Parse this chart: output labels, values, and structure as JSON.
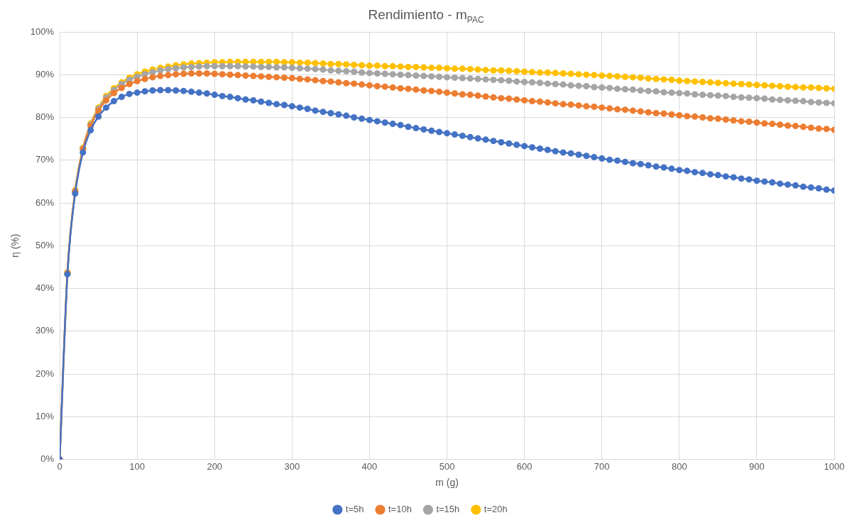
{
  "chart_data": {
    "type": "line",
    "title": "Rendimiento - m$_{PAC}$",
    "xlabel": "m (g)",
    "ylabel": "η (%)",
    "x": [
      0,
      10,
      20,
      30,
      40,
      50,
      60,
      70,
      80,
      90,
      100,
      110,
      120,
      130,
      140,
      150,
      160,
      170,
      180,
      190,
      200,
      210,
      220,
      230,
      240,
      250,
      260,
      270,
      280,
      290,
      300,
      310,
      320,
      330,
      340,
      350,
      360,
      370,
      380,
      390,
      400,
      410,
      420,
      430,
      440,
      450,
      460,
      470,
      480,
      490,
      500,
      510,
      520,
      530,
      540,
      550,
      560,
      570,
      580,
      590,
      600,
      610,
      620,
      630,
      640,
      650,
      660,
      670,
      680,
      690,
      700,
      710,
      720,
      730,
      740,
      750,
      760,
      770,
      780,
      790,
      800,
      810,
      820,
      830,
      840,
      850,
      860,
      870,
      880,
      890,
      900,
      910,
      920,
      930,
      940,
      950,
      960,
      970,
      980,
      990,
      1000
    ],
    "series": [
      {
        "name": "t=5h",
        "color": "#4472c4",
        "values": [
          0,
          43.3,
          62.2,
          71.8,
          77.0,
          80.2,
          82.3,
          83.8,
          84.8,
          85.5,
          85.8,
          86.1,
          86.3,
          86.4,
          86.4,
          86.3,
          86.2,
          86.0,
          85.8,
          85.6,
          85.3,
          85.0,
          84.8,
          84.5,
          84.2,
          84.0,
          83.7,
          83.4,
          83.1,
          82.9,
          82.6,
          82.3,
          82.0,
          81.6,
          81.3,
          81.0,
          80.7,
          80.4,
          80.0,
          79.7,
          79.4,
          79.1,
          78.8,
          78.5,
          78.2,
          77.8,
          77.5,
          77.2,
          76.9,
          76.6,
          76.3,
          76.0,
          75.7,
          75.4,
          75.1,
          74.8,
          74.5,
          74.2,
          73.9,
          73.6,
          73.3,
          73.0,
          72.7,
          72.4,
          72.1,
          71.8,
          71.6,
          71.3,
          71.0,
          70.7,
          70.4,
          70.1,
          69.9,
          69.6,
          69.3,
          69.1,
          68.8,
          68.5,
          68.3,
          68.0,
          67.7,
          67.5,
          67.2,
          67.0,
          66.7,
          66.5,
          66.2,
          66.0,
          65.7,
          65.5,
          65.2,
          65.0,
          64.8,
          64.5,
          64.3,
          64.1,
          63.8,
          63.6,
          63.4,
          63.1,
          62.9
        ]
      },
      {
        "name": "t=10h",
        "color": "#ed7d31",
        "values": [
          0,
          43.5,
          62.6,
          72.5,
          78.0,
          81.6,
          84.0,
          85.7,
          86.9,
          87.8,
          88.5,
          89.0,
          89.4,
          89.7,
          89.9,
          90.1,
          90.2,
          90.3,
          90.3,
          90.3,
          90.2,
          90.1,
          90.0,
          89.9,
          89.8,
          89.7,
          89.6,
          89.5,
          89.4,
          89.3,
          89.2,
          89.0,
          88.9,
          88.7,
          88.5,
          88.4,
          88.2,
          88.0,
          87.9,
          87.7,
          87.5,
          87.3,
          87.2,
          87.0,
          86.8,
          86.7,
          86.5,
          86.3,
          86.2,
          86.0,
          85.8,
          85.6,
          85.4,
          85.3,
          85.1,
          84.9,
          84.7,
          84.5,
          84.4,
          84.2,
          84.0,
          83.8,
          83.7,
          83.5,
          83.3,
          83.1,
          83.0,
          82.8,
          82.6,
          82.5,
          82.3,
          82.1,
          81.9,
          81.8,
          81.6,
          81.4,
          81.2,
          81.0,
          80.9,
          80.7,
          80.5,
          80.3,
          80.2,
          80.0,
          79.8,
          79.7,
          79.5,
          79.3,
          79.1,
          79.0,
          78.8,
          78.6,
          78.5,
          78.3,
          78.1,
          78.0,
          77.8,
          77.6,
          77.4,
          77.3,
          77.1
        ]
      },
      {
        "name": "t=15h",
        "color": "#a5a5a5",
        "values": [
          0,
          43.6,
          62.8,
          72.7,
          78.3,
          82.0,
          84.6,
          86.4,
          87.8,
          88.8,
          89.5,
          90.1,
          90.6,
          91.0,
          91.3,
          91.5,
          91.7,
          91.8,
          91.9,
          92.0,
          92.0,
          92.0,
          92.0,
          92.0,
          91.9,
          91.9,
          91.8,
          91.8,
          91.7,
          91.7,
          91.6,
          91.5,
          91.4,
          91.3,
          91.2,
          91.0,
          90.9,
          90.8,
          90.7,
          90.5,
          90.4,
          90.3,
          90.2,
          90.1,
          90.0,
          89.9,
          89.8,
          89.7,
          89.6,
          89.5,
          89.4,
          89.3,
          89.2,
          89.1,
          89.0,
          88.9,
          88.8,
          88.7,
          88.6,
          88.4,
          88.3,
          88.2,
          88.1,
          87.9,
          87.8,
          87.7,
          87.5,
          87.4,
          87.3,
          87.1,
          87.0,
          86.9,
          86.7,
          86.6,
          86.5,
          86.3,
          86.2,
          86.1,
          85.9,
          85.8,
          85.7,
          85.6,
          85.4,
          85.3,
          85.2,
          85.1,
          85.0,
          84.8,
          84.7,
          84.6,
          84.5,
          84.4,
          84.2,
          84.1,
          84.0,
          83.9,
          83.8,
          83.6,
          83.5,
          83.4,
          83.3
        ]
      },
      {
        "name": "t=20h",
        "color": "#ffc000",
        "values": [
          0,
          43.8,
          63.0,
          72.9,
          78.6,
          82.3,
          85.0,
          86.8,
          88.2,
          89.3,
          90.1,
          90.7,
          91.2,
          91.6,
          91.9,
          92.2,
          92.4,
          92.6,
          92.7,
          92.8,
          92.9,
          92.9,
          93.0,
          93.0,
          93.0,
          93.0,
          93.0,
          93.0,
          93.0,
          92.9,
          92.9,
          92.8,
          92.8,
          92.7,
          92.6,
          92.5,
          92.5,
          92.4,
          92.3,
          92.2,
          92.1,
          92.1,
          92.0,
          92.0,
          91.9,
          91.8,
          91.8,
          91.7,
          91.6,
          91.6,
          91.5,
          91.4,
          91.4,
          91.3,
          91.2,
          91.1,
          91.0,
          91.0,
          90.9,
          90.8,
          90.7,
          90.6,
          90.5,
          90.5,
          90.4,
          90.3,
          90.2,
          90.1,
          90.0,
          89.9,
          89.8,
          89.7,
          89.6,
          89.5,
          89.4,
          89.3,
          89.1,
          89.0,
          88.9,
          88.8,
          88.6,
          88.5,
          88.4,
          88.3,
          88.2,
          88.1,
          88.0,
          87.9,
          87.8,
          87.7,
          87.6,
          87.5,
          87.4,
          87.3,
          87.2,
          87.1,
          87.0,
          87.0,
          86.9,
          86.8,
          86.7
        ]
      }
    ],
    "xlim": [
      0,
      1000
    ],
    "xticks": [
      0,
      100,
      200,
      300,
      400,
      500,
      600,
      700,
      800,
      900,
      1000
    ],
    "ylim": [
      0,
      100
    ],
    "yticks": [
      {
        "value": 0,
        "label": "0%"
      },
      {
        "value": 10,
        "label": "10%"
      },
      {
        "value": 20,
        "label": "20%"
      },
      {
        "value": 30,
        "label": "30%"
      },
      {
        "value": 40,
        "label": "40%"
      },
      {
        "value": 50,
        "label": "50%"
      },
      {
        "value": 60,
        "label": "60%"
      },
      {
        "value": 70,
        "label": "70%"
      },
      {
        "value": 80,
        "label": "80%"
      },
      {
        "value": 90,
        "label": "90%"
      },
      {
        "value": 100,
        "label": "100%"
      }
    ],
    "grid": true,
    "legend": "bottom",
    "marker": "circle",
    "line_style": "solid"
  }
}
